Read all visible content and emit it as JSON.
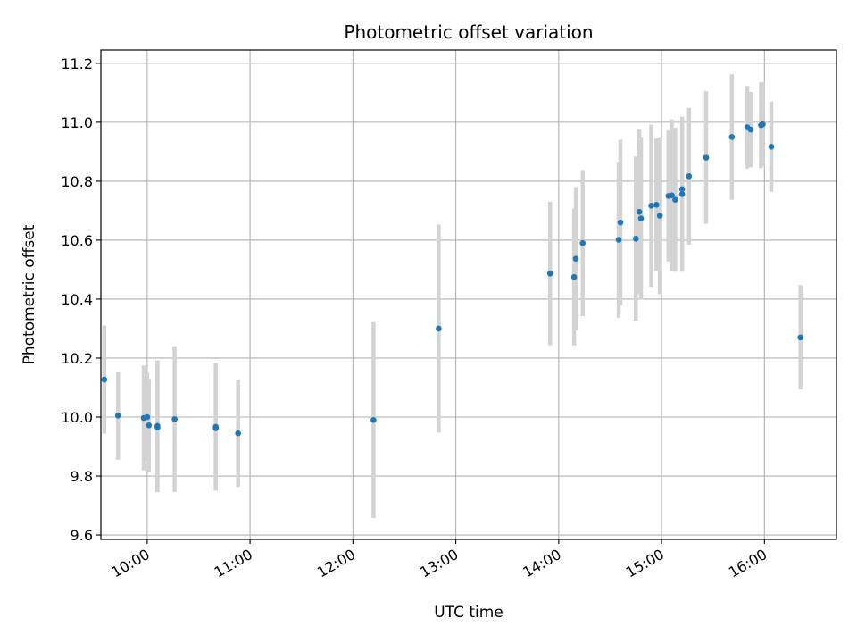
{
  "chart_data": {
    "type": "scatter",
    "title": "Photometric offset variation",
    "xlabel": "UTC time",
    "ylabel": "Photometric offset",
    "grid": true,
    "xlim": [
      "09:33",
      "16:42"
    ],
    "ylim": [
      9.585,
      11.245
    ],
    "x_ticks": [
      "10:00",
      "11:00",
      "12:00",
      "13:00",
      "14:00",
      "15:00",
      "16:00"
    ],
    "y_ticks": [
      "9.6",
      "9.8",
      "10.0",
      "10.2",
      "10.4",
      "10.6",
      "10.8",
      "11.0",
      "11.2"
    ],
    "colors": {
      "point": "#1f77b4",
      "errorbar": "#d3d3d3",
      "grid": "#b0b0b0"
    },
    "points": [
      {
        "x": "09:35",
        "y": 10.127,
        "err": 0.183
      },
      {
        "x": "09:43",
        "y": 10.005,
        "err": 0.15
      },
      {
        "x": "09:58",
        "y": 9.997,
        "err": 0.178
      },
      {
        "x": "10:00",
        "y": 10.0,
        "err": 0.15
      },
      {
        "x": "10:01",
        "y": 9.972,
        "err": 0.157
      },
      {
        "x": "10:06",
        "y": 9.97,
        "err": 0.222
      },
      {
        "x": "10:06",
        "y": 9.965,
        "err": 0.22
      },
      {
        "x": "10:16",
        "y": 9.993,
        "err": 0.247
      },
      {
        "x": "10:40",
        "y": 9.967,
        "err": 0.215
      },
      {
        "x": "10:40",
        "y": 9.962,
        "err": 0.211
      },
      {
        "x": "10:53",
        "y": 9.945,
        "err": 0.182
      },
      {
        "x": "12:12",
        "y": 9.99,
        "err": 0.332
      },
      {
        "x": "12:50",
        "y": 10.3,
        "err": 0.353
      },
      {
        "x": "13:55",
        "y": 10.487,
        "err": 0.243
      },
      {
        "x": "14:09",
        "y": 10.475,
        "err": 0.232
      },
      {
        "x": "14:10",
        "y": 10.537,
        "err": 0.243
      },
      {
        "x": "14:14",
        "y": 10.59,
        "err": 0.248
      },
      {
        "x": "14:35",
        "y": 10.601,
        "err": 0.265
      },
      {
        "x": "14:36",
        "y": 10.66,
        "err": 0.281
      },
      {
        "x": "14:45",
        "y": 10.605,
        "err": 0.278
      },
      {
        "x": "14:47",
        "y": 10.696,
        "err": 0.279
      },
      {
        "x": "14:48",
        "y": 10.674,
        "err": 0.276
      },
      {
        "x": "14:54",
        "y": 10.717,
        "err": 0.275
      },
      {
        "x": "14:57",
        "y": 10.72,
        "err": 0.225
      },
      {
        "x": "14:59",
        "y": 10.683,
        "err": 0.267
      },
      {
        "x": "15:04",
        "y": 10.75,
        "err": 0.222
      },
      {
        "x": "15:06",
        "y": 10.752,
        "err": 0.258
      },
      {
        "x": "15:08",
        "y": 10.737,
        "err": 0.244
      },
      {
        "x": "15:12",
        "y": 10.756,
        "err": 0.263
      },
      {
        "x": "15:12",
        "y": 10.773,
        "err": 0.24
      },
      {
        "x": "15:16",
        "y": 10.817,
        "err": 0.232
      },
      {
        "x": "15:26",
        "y": 10.88,
        "err": 0.225
      },
      {
        "x": "15:41",
        "y": 10.95,
        "err": 0.213
      },
      {
        "x": "15:50",
        "y": 10.983,
        "err": 0.14
      },
      {
        "x": "15:52",
        "y": 10.975,
        "err": 0.128
      },
      {
        "x": "15:58",
        "y": 10.99,
        "err": 0.146
      },
      {
        "x": "15:59",
        "y": 10.993,
        "err": 0.142
      },
      {
        "x": "16:04",
        "y": 10.917,
        "err": 0.153
      },
      {
        "x": "16:21",
        "y": 10.27,
        "err": 0.177
      }
    ]
  }
}
